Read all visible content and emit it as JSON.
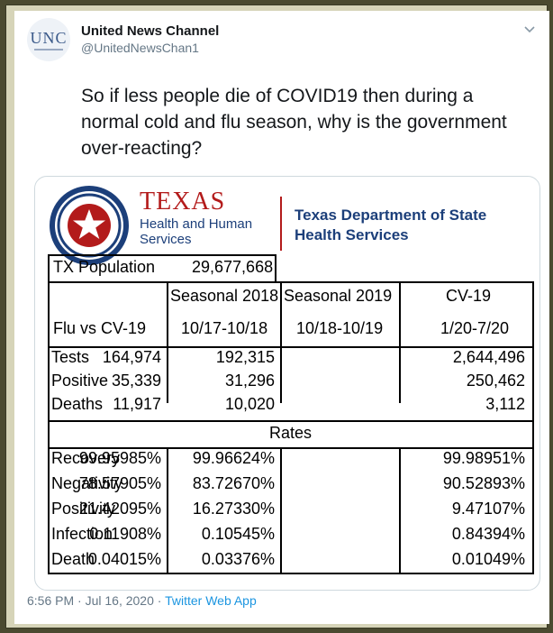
{
  "tweet": {
    "display_name": "United News Channel",
    "handle": "@UnitedNewsChan1",
    "avatar_text": "UNC",
    "text": "So if less people die of COVID19 then during a normal cold and flu season, why is the government over-reacting?",
    "timestamp": "6:56 PM · Jul 16, 2020",
    "separator": " · ",
    "app": "Twitter Web App"
  },
  "image": {
    "logo_title": "TEXAS",
    "logo_subtitle": "Health and Human Services",
    "dept": "Texas Department of State Health Services",
    "population_label": "TX Population",
    "population_value": "29,677,668",
    "col_headers": [
      "Seasonal 2018",
      "Seasonal 2019",
      "CV-19"
    ],
    "row_header_label": "Flu vs CV-19",
    "col_dates": [
      "10/17-10/18",
      "10/18-10/19",
      "1/20-7/20"
    ],
    "counts": [
      {
        "label": "Tests",
        "values": [
          "164,974",
          "192,315",
          "2,644,496"
        ]
      },
      {
        "label": "Positive",
        "values": [
          "35,339",
          "31,296",
          "250,462"
        ]
      },
      {
        "label": "Deaths",
        "values": [
          "11,917",
          "10,020",
          "3,112"
        ]
      }
    ],
    "rates_label": "Rates",
    "rates": [
      {
        "label": "Recovery",
        "values": [
          "99.95985%",
          "99.96624%",
          "99.98951%"
        ]
      },
      {
        "label": "Negativity",
        "values": [
          "78.57905%",
          "83.72670%",
          "90.52893%"
        ]
      },
      {
        "label": "Positivity",
        "values": [
          "21.42095%",
          "16.27330%",
          "9.47107%"
        ]
      },
      {
        "label": "Infection",
        "values": [
          "0.11908%",
          "0.10545%",
          "0.84394%"
        ]
      },
      {
        "label": "Death",
        "values": [
          "0.04015%",
          "0.03376%",
          "0.01049%"
        ]
      }
    ]
  },
  "icons": {
    "caret": "chevron-down-icon",
    "seal": "texas-star-seal-icon"
  },
  "colors": {
    "frame_bg": "#4b4a30",
    "link": "#1b95e0",
    "muted": "#657786",
    "texas_red": "#b31b1b",
    "texas_blue": "#1c3f7a"
  }
}
